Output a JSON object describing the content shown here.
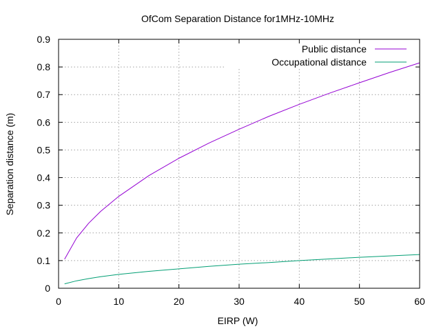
{
  "chart_data": {
    "type": "line",
    "title": "OfCom Separation Distance for1MHz-10MHz",
    "xlabel": "EIRP (W)",
    "ylabel": "Separation distance (m)",
    "xlim": [
      0,
      60
    ],
    "ylim": [
      0,
      0.9
    ],
    "xticks": [
      0,
      10,
      20,
      30,
      40,
      50,
      60
    ],
    "xtick_labels": [
      "0",
      "10",
      "20",
      "30",
      "40",
      "50",
      "60"
    ],
    "yticks": [
      0,
      0.1,
      0.2,
      0.3,
      0.4,
      0.5,
      0.6,
      0.7,
      0.8,
      0.9
    ],
    "ytick_labels": [
      "0",
      "0.1",
      "0.2",
      "0.3",
      "0.4",
      "0.5",
      "0.6",
      "0.7",
      "0.8",
      "0.9"
    ],
    "grid": true,
    "legend_position": "top-right",
    "series": [
      {
        "name": "Public distance",
        "color": "#9400d3",
        "x": [
          1,
          3,
          5,
          7,
          10,
          15,
          20,
          25,
          30,
          35,
          40,
          45,
          50,
          55,
          60
        ],
        "y": [
          0.105,
          0.182,
          0.235,
          0.278,
          0.332,
          0.407,
          0.47,
          0.525,
          0.575,
          0.622,
          0.665,
          0.705,
          0.743,
          0.78,
          0.815
        ]
      },
      {
        "name": "Occupational distance",
        "color": "#009e73",
        "x": [
          1,
          3,
          5,
          7,
          10,
          15,
          20,
          25,
          30,
          35,
          40,
          45,
          50,
          55,
          60
        ],
        "y": [
          0.016,
          0.027,
          0.035,
          0.042,
          0.05,
          0.061,
          0.07,
          0.079,
          0.087,
          0.093,
          0.1,
          0.106,
          0.112,
          0.117,
          0.122
        ]
      }
    ]
  }
}
